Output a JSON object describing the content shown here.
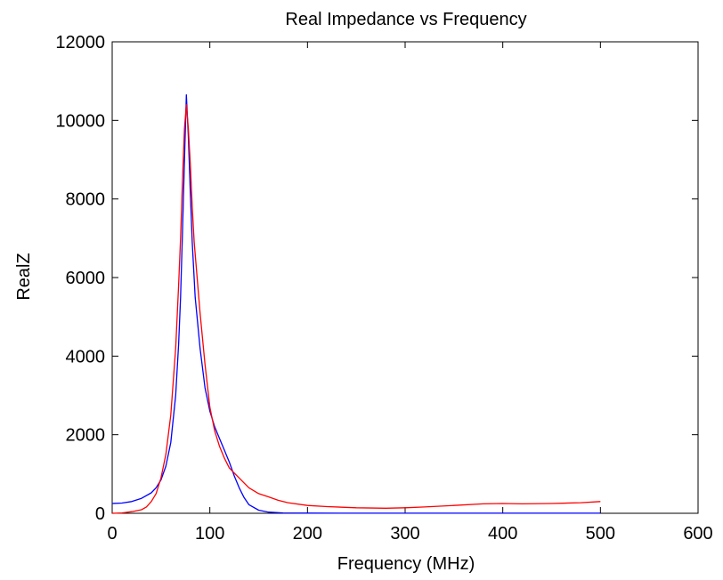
{
  "chart_data": {
    "type": "line",
    "title": "Real Impedance vs Frequency",
    "xlabel": "Frequency (MHz)",
    "ylabel": "RealZ",
    "xlim": [
      0,
      600
    ],
    "ylim": [
      0,
      12000
    ],
    "xticks": [
      0,
      100,
      200,
      300,
      400,
      500,
      600
    ],
    "yticks": [
      0,
      2000,
      4000,
      6000,
      8000,
      10000,
      12000
    ],
    "grid": false,
    "legend": "none",
    "series": [
      {
        "color": "#0000ff",
        "x": [
          0,
          10,
          20,
          30,
          40,
          45,
          50,
          55,
          60,
          65,
          68,
          70,
          72,
          74,
          76,
          78,
          80,
          82,
          85,
          90,
          95,
          100,
          105,
          110,
          115,
          120,
          125,
          130,
          135,
          140,
          150,
          160,
          175,
          200,
          250,
          300,
          400,
          500
        ],
        "y": [
          250,
          260,
          300,
          380,
          520,
          650,
          850,
          1200,
          1800,
          3000,
          4300,
          5500,
          7200,
          9000,
          10650,
          9600,
          8200,
          6900,
          5500,
          4200,
          3200,
          2600,
          2200,
          1900,
          1600,
          1300,
          950,
          650,
          400,
          220,
          80,
          30,
          10,
          5,
          2,
          2,
          2,
          2
        ]
      },
      {
        "color": "#ff0000",
        "x": [
          0,
          10,
          20,
          30,
          35,
          40,
          45,
          50,
          55,
          60,
          65,
          68,
          70,
          72,
          74,
          76,
          78,
          80,
          82,
          84,
          86,
          90,
          95,
          100,
          105,
          110,
          115,
          120,
          130,
          140,
          150,
          160,
          170,
          180,
          200,
          220,
          250,
          280,
          300,
          320,
          350,
          380,
          400,
          420,
          450,
          480,
          500
        ],
        "y": [
          0,
          10,
          40,
          90,
          160,
          300,
          500,
          900,
          1500,
          2500,
          4200,
          5800,
          7000,
          8500,
          9800,
          10400,
          9800,
          8900,
          7800,
          6900,
          6300,
          5100,
          3800,
          2700,
          2100,
          1700,
          1400,
          1150,
          900,
          650,
          500,
          420,
          330,
          270,
          200,
          170,
          140,
          130,
          140,
          160,
          200,
          240,
          250,
          240,
          250,
          270,
          300
        ]
      }
    ]
  }
}
